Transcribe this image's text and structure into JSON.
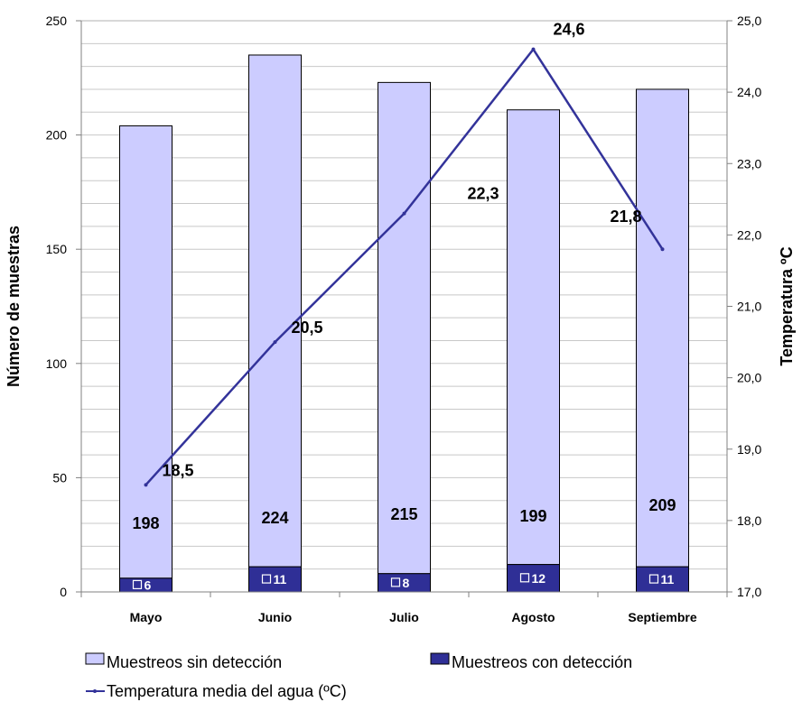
{
  "chart_data": {
    "type": "bar",
    "stacked": true,
    "categories": [
      "Mayo",
      "Junio",
      "Julio",
      "Agosto",
      "Septiembre"
    ],
    "series": [
      {
        "name": "Muestreos con detección",
        "type": "bar",
        "axis": "left",
        "color": "#2f2f96",
        "values": [
          6,
          11,
          8,
          12,
          11
        ],
        "labels": [
          "6",
          "11",
          "8",
          "12",
          "11"
        ]
      },
      {
        "name": "Muestreos sin detección",
        "type": "bar",
        "axis": "left",
        "color": "#ccccff",
        "values": [
          198,
          224,
          215,
          199,
          209
        ],
        "labels": [
          "198",
          "224",
          "215",
          "199",
          "209"
        ]
      },
      {
        "name": "Temperatura media del agua (ºC)",
        "type": "line",
        "axis": "right",
        "color": "#33339a",
        "values": [
          18.5,
          20.5,
          22.3,
          24.6,
          21.8
        ],
        "labels": [
          "18,5",
          "20,5",
          "22,3",
          "24,6",
          "21,8"
        ]
      }
    ],
    "ylabel": "Número de muestras",
    "ylabel_right": "Temperatura ºC",
    "ylim": [
      0,
      250
    ],
    "ylim_right": [
      17.0,
      25.0
    ],
    "y_ticks": [
      0,
      50,
      100,
      150,
      200,
      250
    ],
    "y_tick_labels": [
      "0",
      "50",
      "100",
      "150",
      "200",
      "250"
    ],
    "y_right_ticks": [
      17,
      18,
      19,
      20,
      21,
      22,
      23,
      24,
      25
    ],
    "y_right_tick_labels": [
      "17,0",
      "18,0",
      "19,0",
      "20,0",
      "21,0",
      "22,0",
      "23,0",
      "24,0",
      "25,0"
    ],
    "grid": true,
    "legend_position": "bottom"
  }
}
